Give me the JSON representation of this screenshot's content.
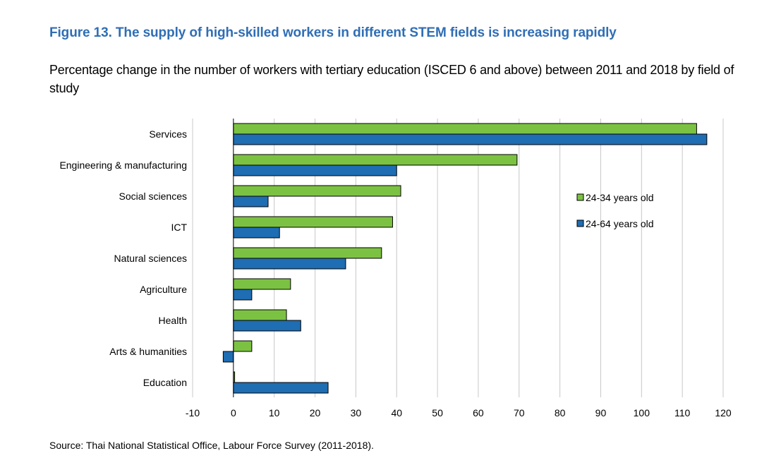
{
  "figure": {
    "title": "Figure 13. The supply of high-skilled workers in different STEM fields is increasing rapidly",
    "subtitle": "Percentage change in the number of workers with tertiary education (ISCED 6 and above) between 2011 and 2018 by field of study",
    "source": "Source: Thai National Statistical Office, Labour Force Survey (2011-2018)."
  },
  "colors": {
    "series_1": "#7cc242",
    "series_2": "#1f6db3",
    "grid": "#c8c8c8",
    "axis": "#000000"
  },
  "chart_data": {
    "type": "bar",
    "orientation": "horizontal",
    "categories": [
      "Services",
      "Engineering & manufacturing",
      "Social sciences",
      "ICT",
      "Natural sciences",
      "Agriculture",
      "Health",
      "Arts & humanities",
      "Education"
    ],
    "series": [
      {
        "name": "24-34 years old",
        "values": [
          113.5,
          69.5,
          41,
          39,
          36.3,
          14,
          13,
          4.5,
          0.3
        ]
      },
      {
        "name": "24-64 years old",
        "values": [
          116,
          40,
          8.5,
          11.3,
          27.5,
          4.5,
          16.5,
          -2.5,
          23.2
        ]
      }
    ],
    "xlim": [
      -10,
      120
    ],
    "xticks": [
      -10,
      0,
      10,
      20,
      30,
      40,
      50,
      60,
      70,
      80,
      90,
      100,
      110,
      120
    ],
    "grid": "vertical",
    "legend_position": "right"
  }
}
